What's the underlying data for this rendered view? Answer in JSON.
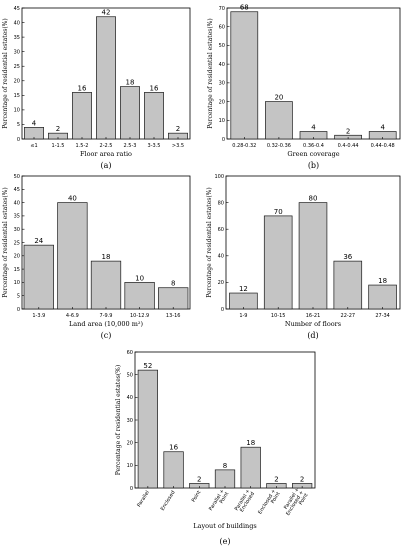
{
  "chart_data": [
    {
      "type": "bar",
      "panel": "(a)",
      "xlabel": "Floor area ratio",
      "ylabel": "Percentage of residential estates(%)",
      "ylim": [
        0,
        45
      ],
      "yticks": [
        0,
        5,
        10,
        15,
        20,
        25,
        30,
        35,
        40,
        45
      ],
      "categories": [
        "≤1",
        "1-1.5",
        "1.5-2",
        "2-2.5",
        "2.5-3",
        "3-3.5",
        ">3.5"
      ],
      "values": [
        4,
        2,
        16,
        42,
        18,
        16,
        2
      ]
    },
    {
      "type": "bar",
      "panel": "(b)",
      "xlabel": "Green coverage",
      "ylabel": "Percentage of residential estates(%)",
      "ylim": [
        0,
        70
      ],
      "yticks": [
        0,
        10,
        20,
        30,
        40,
        50,
        60,
        70
      ],
      "categories": [
        "0.28-0.32",
        "0.32-0.36",
        "0.36-0.4",
        "0.4-0.44",
        "0.44-0.48"
      ],
      "values": [
        68,
        20,
        4,
        2,
        4
      ]
    },
    {
      "type": "bar",
      "panel": "(c)",
      "xlabel": "Land area (10,000 m²)",
      "ylabel": "Percentage of residential estates(%)",
      "ylim": [
        0,
        50
      ],
      "yticks": [
        0,
        5,
        10,
        15,
        20,
        25,
        30,
        35,
        40,
        45,
        50
      ],
      "categories": [
        "1-3.9",
        "4-6.9",
        "7-9.9",
        "10-12.9",
        "13-16"
      ],
      "values": [
        24,
        40,
        18,
        10,
        8
      ]
    },
    {
      "type": "bar",
      "panel": "(d)",
      "xlabel": "Number of floors",
      "ylabel": "Percentage of residential estates(%)",
      "ylim": [
        0,
        100
      ],
      "yticks": [
        0,
        20,
        40,
        60,
        80,
        100
      ],
      "categories": [
        "1-9",
        "10-15",
        "16-21",
        "22-27",
        "27-34"
      ],
      "values": [
        12,
        70,
        80,
        36,
        18
      ]
    },
    {
      "type": "bar",
      "panel": "(e)",
      "xlabel": "Layout of buildings",
      "ylabel": "Percentage of residential estates(%)",
      "ylim": [
        0,
        60
      ],
      "yticks": [
        0,
        10,
        20,
        30,
        40,
        50,
        60
      ],
      "categories": [
        "Parallel",
        "Enclosed",
        "Point",
        "Parallel + Point",
        "Parallel + Enclosed",
        "Enclosed + Point",
        "Parallel + Enclosed + Point"
      ],
      "values": [
        52,
        16,
        2,
        8,
        18,
        2,
        2
      ]
    }
  ]
}
